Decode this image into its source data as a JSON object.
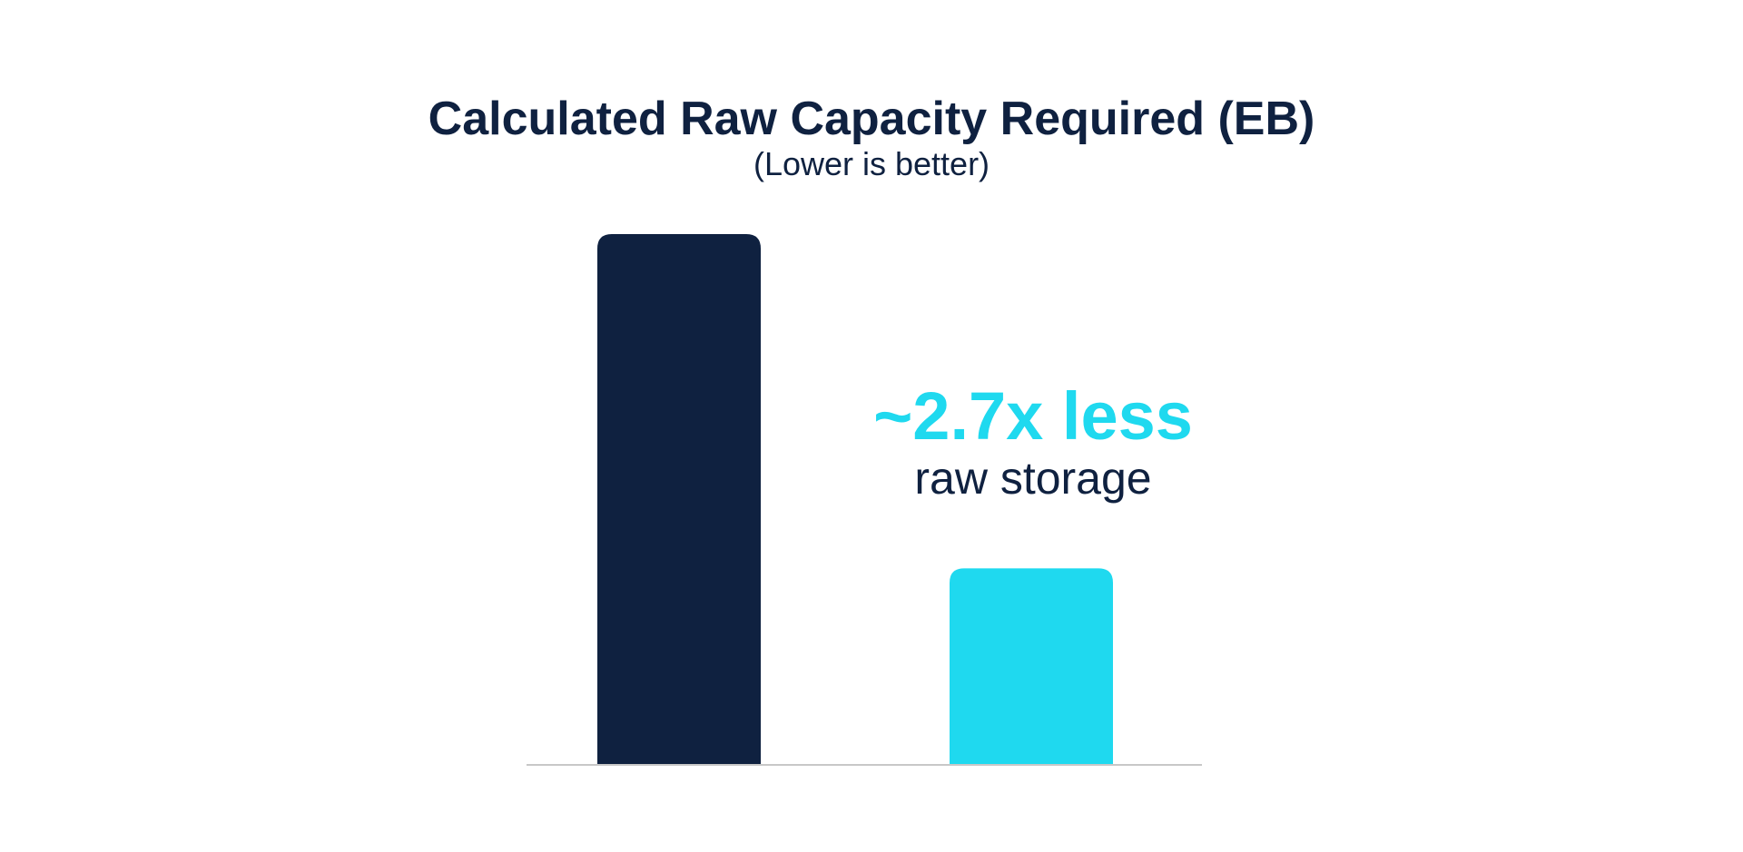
{
  "chart_data": {
    "type": "bar",
    "title": "Calculated Raw Capacity Required (EB)",
    "subtitle": "(Lower is better)",
    "categories": [
      "",
      ""
    ],
    "values": [
      2.7,
      1.0
    ],
    "value_note": "relative; axis unlabeled",
    "ylim": [
      0,
      2.7
    ],
    "grid": false,
    "legend": "none",
    "bar_colors": [
      "#0f2140",
      "#1fd9ef"
    ],
    "annotation": {
      "headline": "~2.7x less",
      "text": "raw storage"
    }
  },
  "colors": {
    "navy": "#0f2140",
    "cyan": "#1fd9ef",
    "axis": "#c8c8c8",
    "background": "#ffffff"
  }
}
